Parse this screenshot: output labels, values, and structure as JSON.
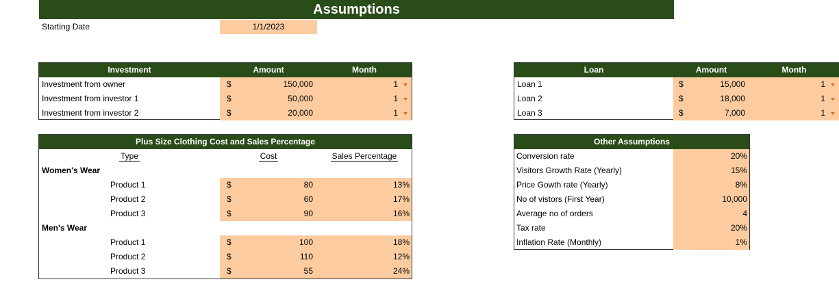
{
  "title": "Assumptions",
  "starting_date": {
    "label": "Starting Date",
    "value": "1/1/2023"
  },
  "investment": {
    "headers": {
      "name": "Investment",
      "amount": "Amount",
      "month": "Month"
    },
    "rows": [
      {
        "name": "Investment from owner",
        "currency": "$",
        "amount": "150,000",
        "month": "1"
      },
      {
        "name": "Investment from investor 1",
        "currency": "$",
        "amount": "50,000",
        "month": "1"
      },
      {
        "name": "Investment from investor 2",
        "currency": "$",
        "amount": "20,000",
        "month": "1"
      }
    ]
  },
  "loan": {
    "headers": {
      "name": "Loan",
      "amount": "Amount",
      "month": "Month"
    },
    "rows": [
      {
        "name": "Loan 1",
        "currency": "$",
        "amount": "15,000",
        "month": "1"
      },
      {
        "name": "Loan 2",
        "currency": "$",
        "amount": "18,000",
        "month": "1"
      },
      {
        "name": "Loan 3",
        "currency": "$",
        "amount": "7,000",
        "month": "1"
      }
    ]
  },
  "clothing": {
    "title": "Plus Size Clothing Cost and Sales Percentage",
    "headers": {
      "type": "Type",
      "cost": "Cost",
      "sales": "Sales Percentage"
    },
    "womens": {
      "label": "Women's Wear",
      "rows": [
        {
          "name": "Product 1",
          "currency": "$",
          "cost": "80",
          "pct": "13%"
        },
        {
          "name": "Product 2",
          "currency": "$",
          "cost": "60",
          "pct": "17%"
        },
        {
          "name": "Product 3",
          "currency": "$",
          "cost": "90",
          "pct": "16%"
        }
      ]
    },
    "mens": {
      "label": "Men's Wear",
      "rows": [
        {
          "name": "Product 1",
          "currency": "$",
          "cost": "100",
          "pct": "18%"
        },
        {
          "name": "Product 2",
          "currency": "$",
          "cost": "110",
          "pct": "12%"
        },
        {
          "name": "Product 3",
          "currency": "$",
          "cost": "55",
          "pct": "24%"
        }
      ]
    }
  },
  "other": {
    "title": "Other Assumptions",
    "rows": [
      {
        "label": "Conversion rate",
        "value": "20%"
      },
      {
        "label": "Visitors Growth Rate (Yearly)",
        "value": "15%"
      },
      {
        "label": "Price Gowth rate (Yearly)",
        "value": "8%"
      },
      {
        "label": "No of vistors  (First Year)",
        "value": "10,000"
      },
      {
        "label": "Average no of orders",
        "value": "4"
      },
      {
        "label": "Tax rate",
        "value": "20%"
      },
      {
        "label": "Inflation Rate (Monthly)",
        "value": "1%"
      }
    ]
  },
  "colors": {
    "header_green": "#2a4c19",
    "input_peach": "#fccca0",
    "dropdown_arrow": "#d2691e"
  },
  "icons": {
    "dropdown": "chevron-down-icon"
  }
}
